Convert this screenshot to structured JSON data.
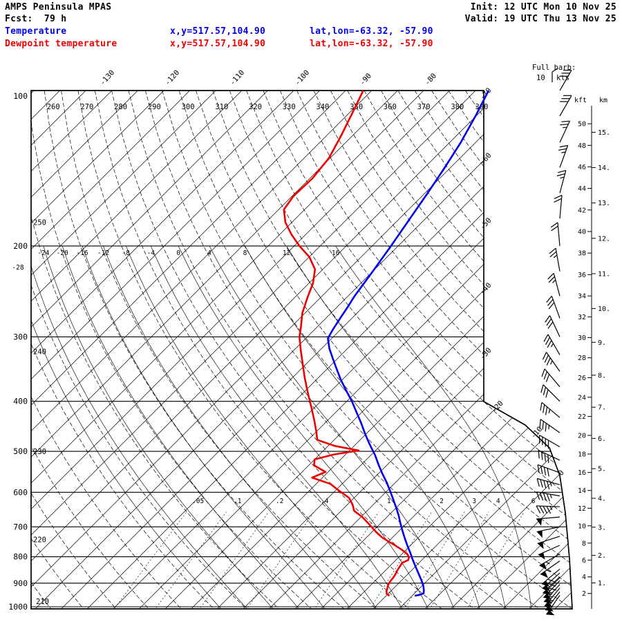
{
  "header": {
    "title": "AMPS Peninsula MPAS",
    "fcst": "Fcst:  79 h",
    "init": "Init: 12 UTC Mon 10 Nov 25",
    "valid": "Valid: 19 UTC Thu 13 Nov 25"
  },
  "legend": {
    "temperature": {
      "label": "Temperature",
      "xy": "x,y=517.57,104.90",
      "latlon": "lat,lon=-63.32, -57.90"
    },
    "dewpoint": {
      "label": "Dewpoint temperature",
      "xy": "x,y=517.57,104.90",
      "latlon": "lat,lon=-63.32, -57.90"
    }
  },
  "colors": {
    "temperature": "#0000ee",
    "dewpoint": "#ee0000",
    "grid": "#000000"
  },
  "barb_note": {
    "line1": "Full barb:",
    "value": "10",
    "unit": "kts"
  },
  "axes": {
    "pressure_ticks": [
      100,
      200,
      300,
      400,
      500,
      600,
      700,
      800,
      900,
      1000
    ],
    "isotherm_labels": [
      -130,
      -120,
      -110,
      -100,
      -90,
      -80,
      -70,
      -60,
      -50,
      -40,
      -30,
      -20,
      -10,
      0
    ],
    "dry_adiabat_labels": [
      210,
      220,
      230,
      240,
      250,
      260,
      270,
      280,
      290,
      300,
      310,
      320,
      330,
      340,
      350,
      360,
      370,
      380,
      390
    ],
    "moist_adiabat_labels": [
      -28,
      -24,
      -20,
      -16,
      -12,
      -8,
      -4,
      0,
      4,
      8,
      12,
      16
    ],
    "mixing_ratio_labels": [
      {
        "value": 0.05,
        "label": ".05"
      },
      {
        "value": 0.1,
        "label": ".1"
      },
      {
        "value": 0.2,
        "label": ".2"
      },
      {
        "value": 0.4,
        "label": ".4"
      },
      {
        "value": 1,
        "label": "1"
      },
      {
        "value": 2,
        "label": "2"
      },
      {
        "value": 3,
        "label": "3"
      },
      {
        "value": 4,
        "label": "4"
      },
      {
        "value": 6,
        "label": "6"
      }
    ],
    "kft_axis": {
      "label": "kft",
      "ticks": [
        50,
        48,
        46,
        44,
        42,
        40,
        38,
        36,
        34,
        32,
        30,
        28,
        26,
        24,
        22,
        20,
        18,
        16,
        14,
        12,
        10,
        8,
        6,
        4,
        2
      ]
    },
    "km_axis": {
      "label": "km",
      "ticks": [
        15,
        14,
        13,
        12,
        11,
        10,
        9,
        8,
        7,
        6,
        5,
        4,
        3,
        2,
        1
      ]
    }
  },
  "chart_data": {
    "type": "skewt_log_p",
    "pressure_range_hPa": [
      100,
      1000
    ],
    "temperature_profile_p_degC": [
      [
        100,
        -70.0
      ],
      [
        112,
        -68.1
      ],
      [
        126,
        -66.3
      ],
      [
        141,
        -64.9
      ],
      [
        158,
        -63.6
      ],
      [
        177,
        -62.4
      ],
      [
        200,
        -61.1
      ],
      [
        224,
        -60.0
      ],
      [
        250,
        -59.0
      ],
      [
        262,
        -58.4
      ],
      [
        276,
        -57.8
      ],
      [
        290,
        -57.2
      ],
      [
        302,
        -56.6
      ],
      [
        316,
        -54.8
      ],
      [
        330,
        -52.8
      ],
      [
        345,
        -50.7
      ],
      [
        362,
        -48.4
      ],
      [
        380,
        -45.9
      ],
      [
        400,
        -43.2
      ],
      [
        420,
        -40.8
      ],
      [
        440,
        -38.5
      ],
      [
        462,
        -36.2
      ],
      [
        485,
        -33.8
      ],
      [
        508,
        -31.4
      ],
      [
        530,
        -29.4
      ],
      [
        552,
        -27.4
      ],
      [
        575,
        -25.3
      ],
      [
        598,
        -23.4
      ],
      [
        620,
        -21.7
      ],
      [
        643,
        -20.0
      ],
      [
        666,
        -18.4
      ],
      [
        690,
        -16.9
      ],
      [
        714,
        -15.4
      ],
      [
        738,
        -13.9
      ],
      [
        762,
        -12.4
      ],
      [
        786,
        -10.9
      ],
      [
        810,
        -9.5
      ],
      [
        832,
        -8.2
      ],
      [
        854,
        -6.9
      ],
      [
        875,
        -5.7
      ],
      [
        895,
        -4.6
      ],
      [
        913,
        -3.7
      ],
      [
        930,
        -3.0
      ],
      [
        942,
        -2.6
      ],
      [
        948,
        -3.0
      ],
      [
        952,
        -3.6
      ]
    ],
    "dewpoint_profile_p_degC": [
      [
        100,
        -89.3
      ],
      [
        110,
        -87.6
      ],
      [
        122,
        -85.8
      ],
      [
        135,
        -84.2
      ],
      [
        148,
        -83.6
      ],
      [
        160,
        -83.8
      ],
      [
        170,
        -83.2
      ],
      [
        180,
        -81.0
      ],
      [
        190,
        -78.2
      ],
      [
        200,
        -75.2
      ],
      [
        210,
        -72.0
      ],
      [
        222,
        -69.2
      ],
      [
        236,
        -67.4
      ],
      [
        252,
        -66.0
      ],
      [
        270,
        -64.4
      ],
      [
        288,
        -62.4
      ],
      [
        300,
        -61.2
      ],
      [
        318,
        -59.0
      ],
      [
        338,
        -56.6
      ],
      [
        360,
        -54.1
      ],
      [
        385,
        -51.3
      ],
      [
        410,
        -48.6
      ],
      [
        435,
        -46.1
      ],
      [
        458,
        -44.0
      ],
      [
        475,
        -42.6
      ],
      [
        488,
        -39.0
      ],
      [
        498,
        -34.6
      ],
      [
        507,
        -37.8
      ],
      [
        518,
        -40.0
      ],
      [
        532,
        -39.2
      ],
      [
        548,
        -36.4
      ],
      [
        562,
        -37.6
      ],
      [
        578,
        -33.8
      ],
      [
        596,
        -31.4
      ],
      [
        615,
        -28.8
      ],
      [
        634,
        -27.2
      ],
      [
        652,
        -26.0
      ],
      [
        670,
        -23.8
      ],
      [
        688,
        -22.0
      ],
      [
        703,
        -20.6
      ],
      [
        718,
        -19.2
      ],
      [
        734,
        -17.6
      ],
      [
        748,
        -15.9
      ],
      [
        762,
        -14.2
      ],
      [
        776,
        -12.6
      ],
      [
        790,
        -11.2
      ],
      [
        802,
        -10.4
      ],
      [
        812,
        -10.1
      ],
      [
        822,
        -10.6
      ],
      [
        836,
        -10.4
      ],
      [
        850,
        -10.2
      ],
      [
        864,
        -9.9
      ],
      [
        878,
        -9.7
      ],
      [
        892,
        -9.6
      ],
      [
        906,
        -9.4
      ],
      [
        920,
        -9.0
      ],
      [
        934,
        -8.6
      ],
      [
        944,
        -8.2
      ],
      [
        952,
        -7.5
      ]
    ],
    "wind_profile_p_dir_kt": [
      [
        100,
        30,
        30
      ],
      [
        112,
        30,
        30
      ],
      [
        126,
        25,
        25
      ],
      [
        141,
        20,
        25
      ],
      [
        158,
        15,
        25
      ],
      [
        177,
        5,
        20
      ],
      [
        200,
        355,
        20
      ],
      [
        224,
        350,
        25
      ],
      [
        250,
        345,
        25
      ],
      [
        276,
        340,
        30
      ],
      [
        300,
        335,
        30
      ],
      [
        325,
        330,
        35
      ],
      [
        350,
        325,
        35
      ],
      [
        375,
        320,
        30
      ],
      [
        400,
        315,
        30
      ],
      [
        430,
        310,
        35
      ],
      [
        460,
        305,
        35
      ],
      [
        490,
        300,
        40
      ],
      [
        520,
        295,
        40
      ],
      [
        550,
        290,
        40
      ],
      [
        580,
        285,
        45
      ],
      [
        610,
        280,
        45
      ],
      [
        640,
        272,
        45
      ],
      [
        670,
        265,
        50
      ],
      [
        700,
        258,
        50
      ],
      [
        730,
        252,
        50
      ],
      [
        760,
        246,
        50
      ],
      [
        790,
        240,
        55
      ],
      [
        815,
        235,
        55
      ],
      [
        845,
        230,
        60
      ],
      [
        860,
        228,
        60
      ],
      [
        875,
        226,
        60
      ],
      [
        890,
        224,
        55
      ],
      [
        905,
        222,
        55
      ],
      [
        920,
        220,
        55
      ],
      [
        935,
        218,
        50
      ],
      [
        950,
        215,
        50
      ]
    ]
  }
}
